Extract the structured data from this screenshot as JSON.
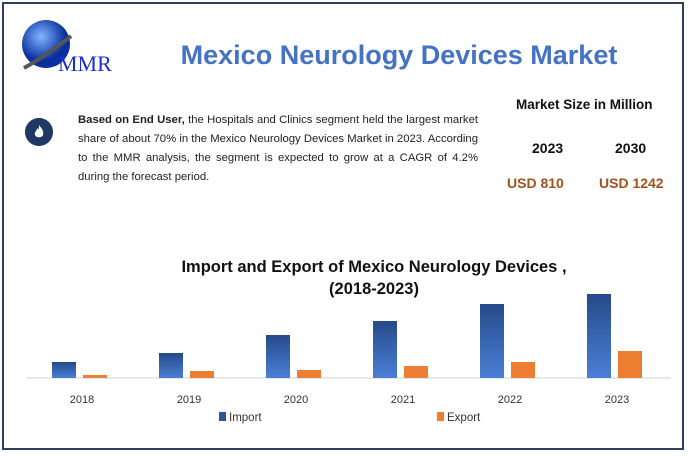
{
  "header": {
    "logo_text": "MMR",
    "title": "Mexico Neurology Devices Market"
  },
  "summary": {
    "icon": "flame-icon",
    "bold_lead": "Based on End User,",
    "text": " the Hospitals and Clinics segment held the largest market share of about 70% in the Mexico Neurology Devices Market in 2023. According to the MMR analysis, the segment is expected to grow at a CAGR of 4.2% during the forecast period."
  },
  "market_size": {
    "label": "Market Size in Million",
    "year_a": "2023",
    "year_b": "2030",
    "value_a": "USD 810",
    "value_b": "USD 1242"
  },
  "chart_data": {
    "type": "bar",
    "title": "Import and Export of Mexico Neurology Devices ,",
    "subtitle": "(2018-2023)",
    "categories": [
      "2018",
      "2019",
      "2020",
      "2021",
      "2022",
      "2023"
    ],
    "series": [
      {
        "name": "Import",
        "color": "#2f5597",
        "values": [
          16,
          25,
          43,
          57,
          74,
          84
        ]
      },
      {
        "name": "Export",
        "color": "#ed7d31",
        "values": [
          3,
          7,
          8,
          12,
          16,
          27
        ]
      }
    ],
    "ylim": [
      0,
      90
    ],
    "grid": false,
    "y_axis_shown": false,
    "legend": "bottom"
  }
}
